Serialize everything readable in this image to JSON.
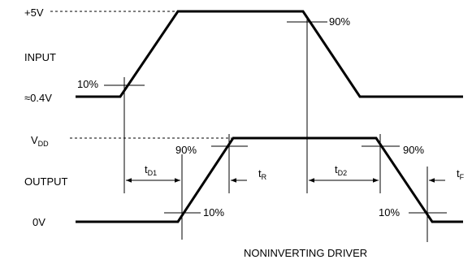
{
  "levels": {
    "input_high": "+5V",
    "input_low": "≈0.4V",
    "output_high_main": "V",
    "output_high_sub": "DD",
    "output_low": "0V"
  },
  "signals": {
    "input": "INPUT",
    "output": "OUTPUT"
  },
  "thresholds": {
    "in_rise": "10%",
    "in_fall": "90%",
    "out_rise_high": "90%",
    "out_rise_low": "10%",
    "out_fall_high": "90%",
    "out_fall_low": "10%"
  },
  "timings": {
    "td1_main": "t",
    "td1_sub": "D1",
    "tr_main": "t",
    "tr_sub": "R",
    "td2_main": "t",
    "td2_sub": "D2",
    "tf_main": "t",
    "tf_sub": "F"
  },
  "caption": "NONINVERTING DRIVER"
}
